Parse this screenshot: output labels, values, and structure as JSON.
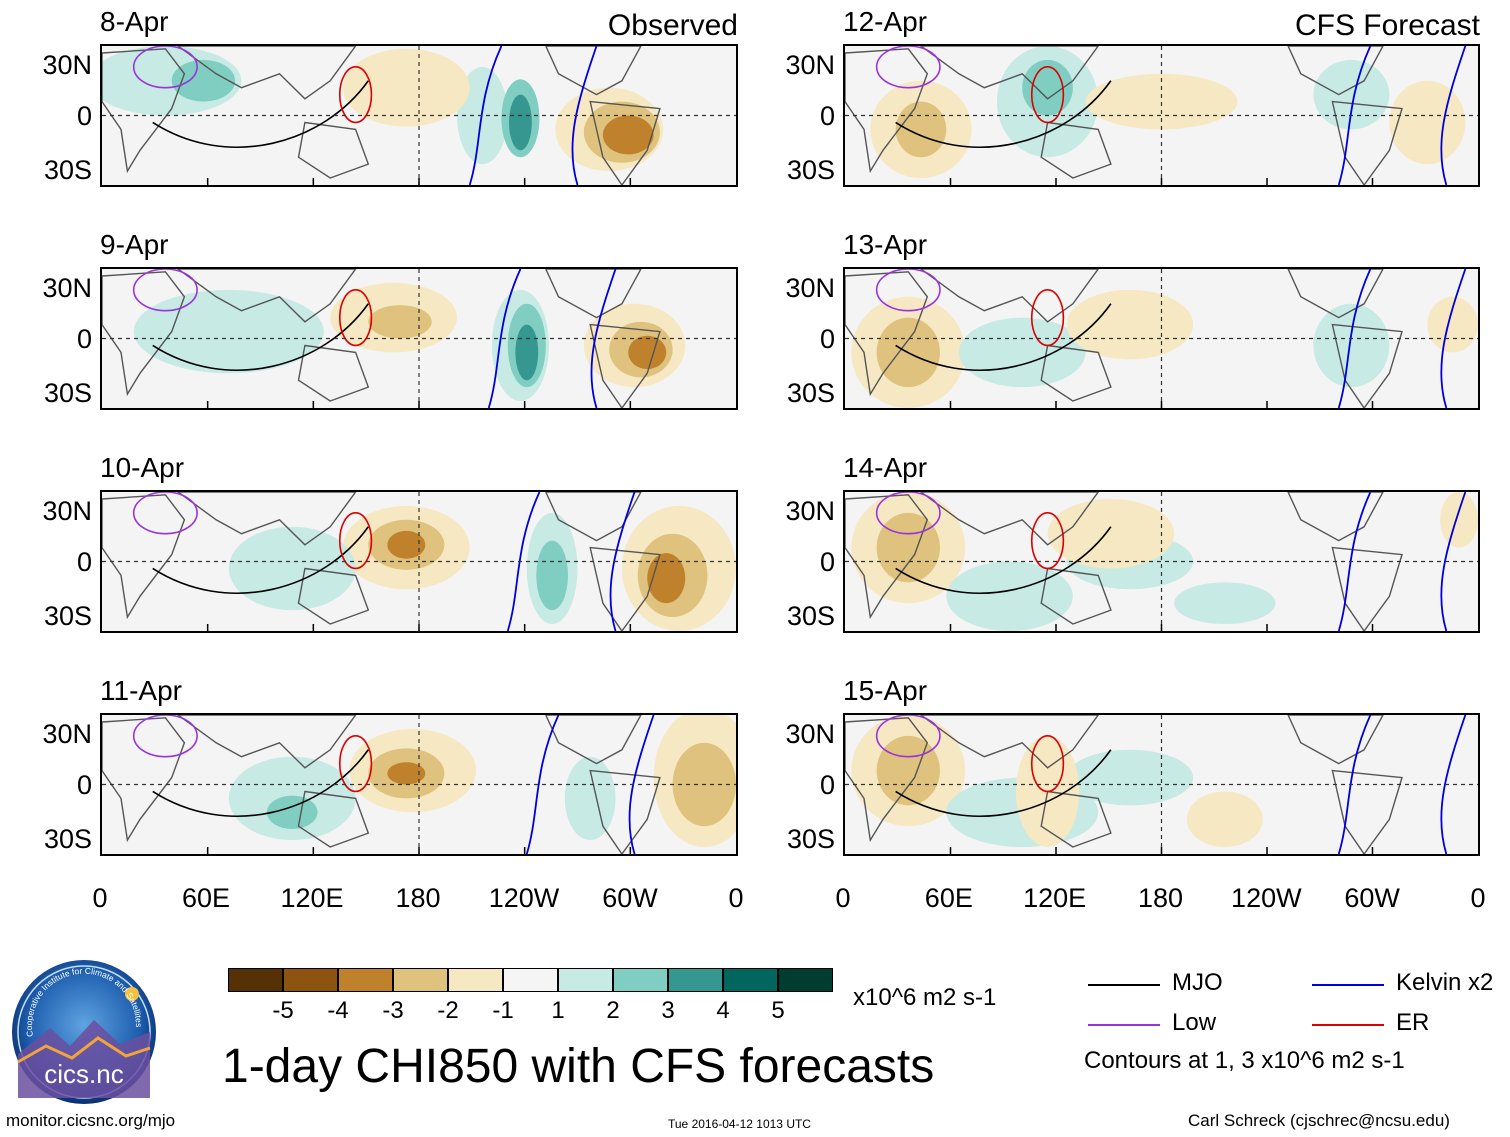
{
  "header": {
    "observed_title": "Observed",
    "forecast_title": "CFS Forecast"
  },
  "observed_panels": [
    {
      "date": "8-Apr"
    },
    {
      "date": "9-Apr"
    },
    {
      "date": "10-Apr"
    },
    {
      "date": "11-Apr"
    }
  ],
  "forecast_panels": [
    {
      "date": "12-Apr"
    },
    {
      "date": "13-Apr"
    },
    {
      "date": "14-Apr"
    },
    {
      "date": "15-Apr"
    }
  ],
  "lat_labels": [
    "30N",
    "0",
    "30S"
  ],
  "lon_labels": [
    "0",
    "60E",
    "120E",
    "180",
    "120W",
    "60W",
    "0"
  ],
  "colorbar": {
    "tick_labels": [
      "-5",
      "-4",
      "-3",
      "-2",
      "-1",
      "1",
      "2",
      "3",
      "4",
      "5"
    ],
    "units": "x10^6 m2 s-1",
    "colors": [
      "#553105",
      "#8c5410",
      "#c0812c",
      "#dfc27d",
      "#f6e8c3",
      "#f5f5f5",
      "#c7eae5",
      "#80cdc1",
      "#35978f",
      "#01665e",
      "#003c30"
    ]
  },
  "legend": {
    "items": [
      {
        "label": "MJO",
        "color": "#000000"
      },
      {
        "label": "Kelvin x2",
        "color": "#0000dd"
      },
      {
        "label": "Low",
        "color": "#9933dd"
      },
      {
        "label": "ER",
        "color": "#dd0000"
      }
    ],
    "note": "Contours at 1, 3 x10^6 m2 s-1"
  },
  "title": "1-day CHI850 with CFS forecasts",
  "logo": {
    "name": "cics.nc",
    "arc_text": "Cooperative Institute for Climate and Satellites"
  },
  "footer": {
    "site": "monitor.cicsnc.org/mjo",
    "timestamp": "Tue 2016-04-12 1013 UTC",
    "credit": "Carl Schreck (cjschrec@ncsu.edu)"
  }
}
